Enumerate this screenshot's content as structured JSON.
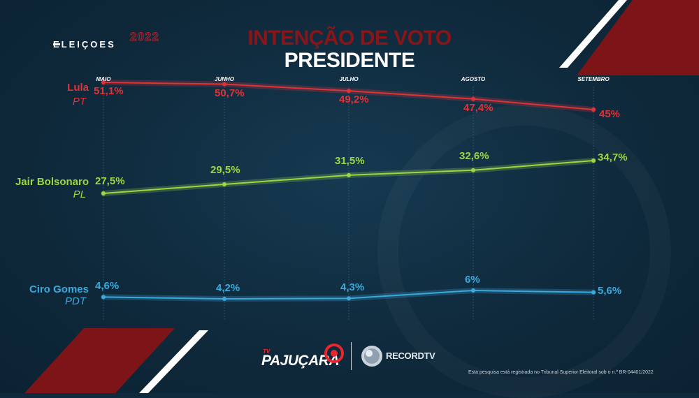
{
  "logo": {
    "name": "ELEIÇOES",
    "year": "2022"
  },
  "title": {
    "line1": "INTENÇÃO DE VOTO",
    "line2": "PRESIDENTE"
  },
  "colors": {
    "lula": "#e03238",
    "bolsonaro": "#9bd742",
    "ciro": "#3aa9dd",
    "background": "#0f2a3c",
    "accent_dark_red": "#8a1518"
  },
  "chart_data": {
    "type": "line",
    "title": "INTENÇÃO DE VOTO PRESIDENTE",
    "categories": [
      "MAIO",
      "JUNHO",
      "JULHO",
      "AGOSTO",
      "SETEMBRO"
    ],
    "ylim": [
      0,
      55
    ],
    "grid": "vertical",
    "series": [
      {
        "key": "lula",
        "name": "Lula",
        "party": "PT",
        "values": [
          51.1,
          50.7,
          49.2,
          47.4,
          45
        ],
        "labels": [
          "51,1%",
          "50,7%",
          "49,2%",
          "47,4%",
          "45%"
        ]
      },
      {
        "key": "bolsonaro",
        "name": "Jair Bolsonaro",
        "party": "PL",
        "values": [
          27.5,
          29.5,
          31.5,
          32.6,
          34.7
        ],
        "labels": [
          "27,5%",
          "29,5%",
          "31,5%",
          "32,6%",
          "34,7%"
        ]
      },
      {
        "key": "ciro",
        "name": "Ciro Gomes",
        "party": "PDT",
        "values": [
          4.6,
          4.2,
          4.3,
          6,
          5.6
        ],
        "labels": [
          "4,6%",
          "4,2%",
          "4,3%",
          "6%",
          "5,6%"
        ]
      }
    ]
  },
  "footer": {
    "tv": "TV",
    "pajucara": "PAJUÇARA",
    "record": "RECORDTV",
    "note": "Esta pesquisa está registrada no Tribunal Superior Eleitoral sob o n.º BR-04401/2022"
  }
}
